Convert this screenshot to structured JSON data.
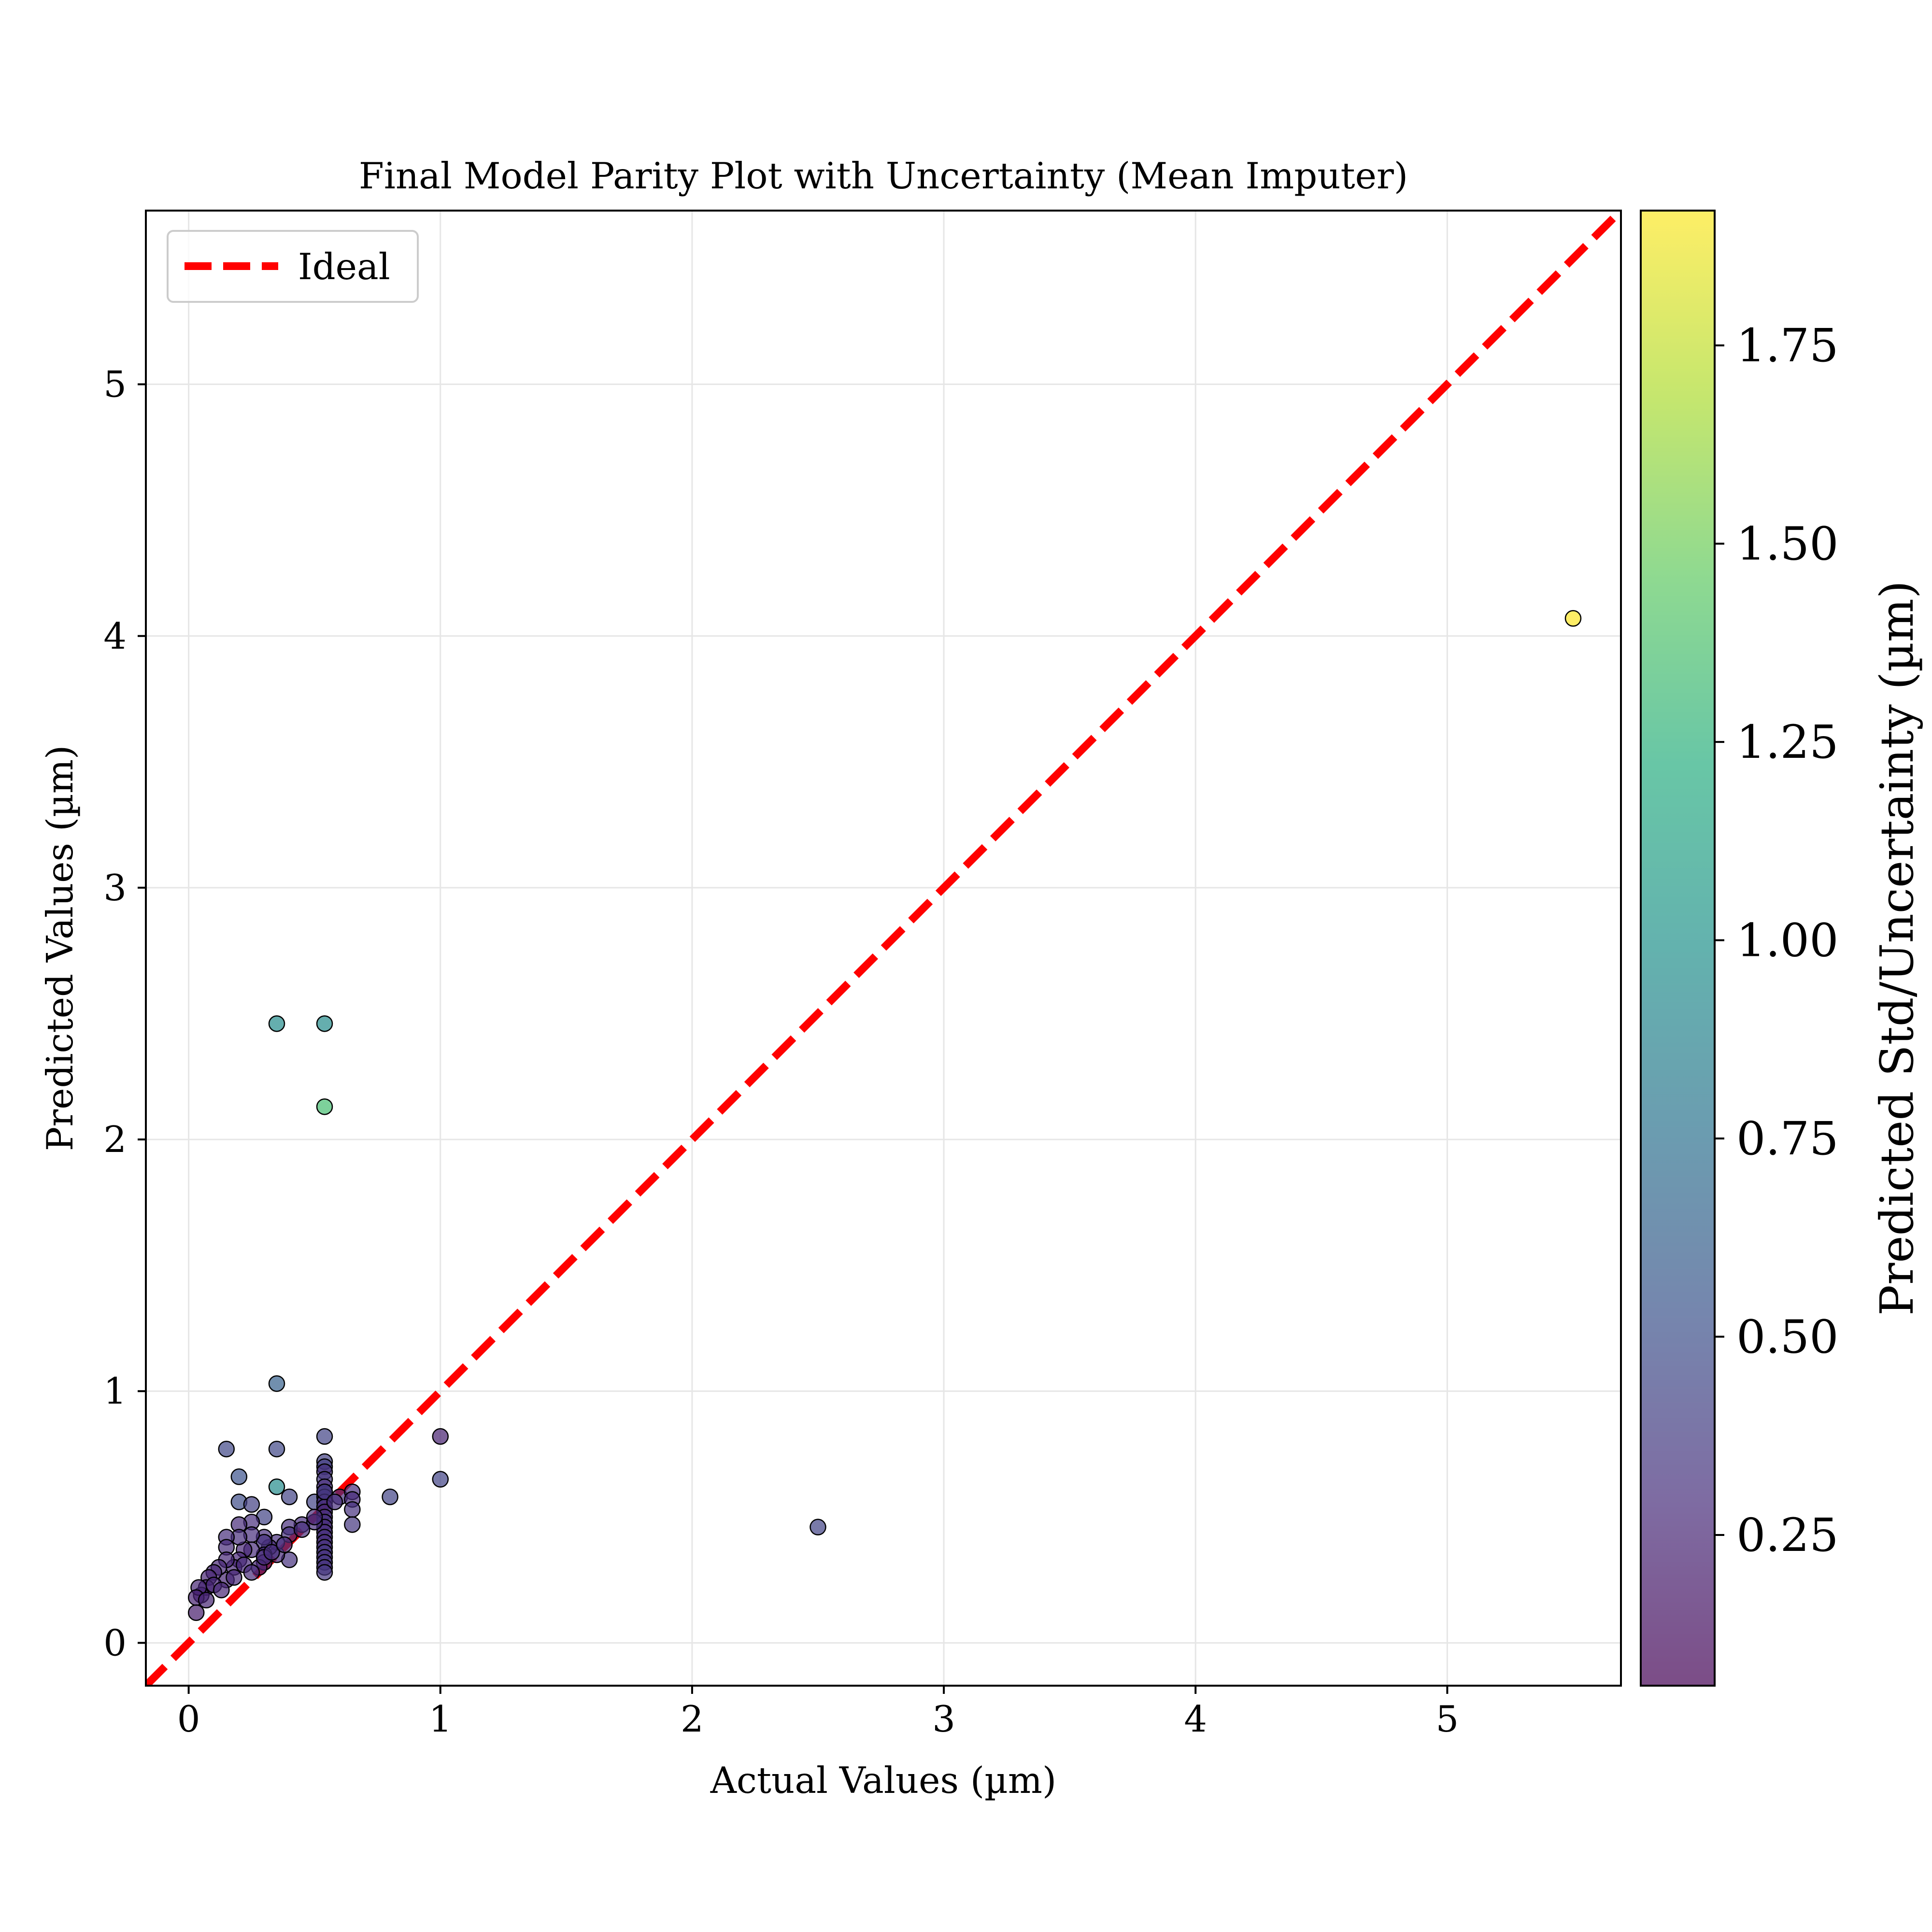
{
  "chart_data": {
    "type": "scatter",
    "title": "Final Model Parity Plot with Uncertainty (Mean Imputer)",
    "xlabel": "Actual Values (µm)",
    "ylabel": "Predicted Values (µm)",
    "xlim": [
      -0.17,
      5.69
    ],
    "ylim": [
      -0.17,
      5.69
    ],
    "x_ticks": [
      0,
      1,
      2,
      3,
      4,
      5
    ],
    "y_ticks": [
      0,
      1,
      2,
      3,
      4,
      5
    ],
    "x_tick_labels": [
      "0",
      "1",
      "2",
      "3",
      "4",
      "5"
    ],
    "y_tick_labels": [
      "0",
      "1",
      "2",
      "3",
      "4",
      "5"
    ],
    "grid": true,
    "legend": {
      "position": "top-left",
      "entries": [
        {
          "label": "Ideal",
          "color": "#ff0000",
          "style": "dashed"
        }
      ]
    },
    "ideal_line": {
      "label": "Ideal",
      "x": [
        -0.17,
        5.69
      ],
      "y": [
        -0.17,
        5.69
      ],
      "color": "#ff0000"
    },
    "colorbar": {
      "label": "Predicted Std/Uncertainty (µm)",
      "colormap": "viridis",
      "alpha": 0.7,
      "range": [
        0.06,
        1.92
      ],
      "ticks": [
        0.25,
        0.5,
        0.75,
        1.0,
        1.25,
        1.5,
        1.75
      ],
      "tick_labels": [
        "0.25",
        "0.50",
        "0.75",
        "1.00",
        "1.25",
        "1.50",
        "1.75"
      ]
    },
    "points": {
      "x": [
        5.5,
        0.35,
        0.54,
        0.54,
        2.5,
        0.35,
        1.0,
        1.0,
        0.8,
        0.15,
        0.35,
        0.35,
        0.2,
        0.2,
        0.25,
        0.3,
        0.4,
        0.5,
        0.54,
        0.54,
        0.54,
        0.54,
        0.54,
        0.54,
        0.54,
        0.54,
        0.54,
        0.54,
        0.54,
        0.54,
        0.54,
        0.54,
        0.54,
        0.54,
        0.54,
        0.54,
        0.54,
        0.54,
        0.54,
        0.54,
        0.54,
        0.54,
        0.6,
        0.65,
        0.65,
        0.65,
        0.65,
        0.45,
        0.5,
        0.4,
        0.4,
        0.4,
        0.35,
        0.35,
        0.32,
        0.3,
        0.3,
        0.3,
        0.3,
        0.28,
        0.25,
        0.25,
        0.25,
        0.22,
        0.2,
        0.2,
        0.2,
        0.18,
        0.15,
        0.15,
        0.15,
        0.15,
        0.12,
        0.1,
        0.08,
        0.07,
        0.05,
        0.04,
        0.03,
        0.03,
        0.07,
        0.1,
        0.13,
        0.18,
        0.22,
        0.25,
        0.3,
        0.33,
        0.38,
        0.45,
        0.5,
        0.58
      ],
      "y": [
        4.07,
        2.46,
        2.46,
        2.13,
        0.46,
        1.03,
        0.82,
        0.65,
        0.58,
        0.77,
        0.77,
        0.62,
        0.66,
        0.56,
        0.55,
        0.5,
        0.58,
        0.56,
        0.82,
        0.72,
        0.7,
        0.68,
        0.65,
        0.62,
        0.6,
        0.58,
        0.56,
        0.54,
        0.52,
        0.5,
        0.48,
        0.46,
        0.44,
        0.42,
        0.4,
        0.38,
        0.36,
        0.34,
        0.32,
        0.3,
        0.28,
        0.6,
        0.58,
        0.6,
        0.57,
        0.53,
        0.47,
        0.47,
        0.48,
        0.46,
        0.43,
        0.33,
        0.35,
        0.4,
        0.38,
        0.42,
        0.4,
        0.35,
        0.32,
        0.3,
        0.48,
        0.43,
        0.37,
        0.37,
        0.47,
        0.42,
        0.33,
        0.3,
        0.42,
        0.38,
        0.33,
        0.25,
        0.3,
        0.28,
        0.26,
        0.22,
        0.19,
        0.22,
        0.18,
        0.12,
        0.17,
        0.23,
        0.21,
        0.26,
        0.31,
        0.28,
        0.34,
        0.36,
        0.39,
        0.45,
        0.5,
        0.56
      ],
      "uncertainty": [
        1.92,
        0.95,
        0.95,
        1.35,
        0.42,
        0.62,
        0.22,
        0.42,
        0.42,
        0.45,
        0.45,
        0.95,
        0.52,
        0.48,
        0.4,
        0.42,
        0.42,
        0.42,
        0.42,
        0.4,
        0.38,
        0.32,
        0.35,
        0.3,
        0.38,
        0.35,
        0.3,
        0.32,
        0.28,
        0.3,
        0.32,
        0.28,
        0.3,
        0.32,
        0.3,
        0.32,
        0.35,
        0.32,
        0.35,
        0.32,
        0.35,
        0.35,
        0.32,
        0.3,
        0.28,
        0.32,
        0.35,
        0.3,
        0.3,
        0.3,
        0.32,
        0.32,
        0.28,
        0.3,
        0.28,
        0.3,
        0.32,
        0.3,
        0.28,
        0.26,
        0.3,
        0.3,
        0.28,
        0.26,
        0.28,
        0.3,
        0.26,
        0.25,
        0.3,
        0.28,
        0.26,
        0.24,
        0.25,
        0.25,
        0.24,
        0.22,
        0.22,
        0.25,
        0.22,
        0.2,
        0.24,
        0.25,
        0.25,
        0.26,
        0.27,
        0.28,
        0.28,
        0.29,
        0.3,
        0.3,
        0.3,
        0.3
      ]
    }
  }
}
